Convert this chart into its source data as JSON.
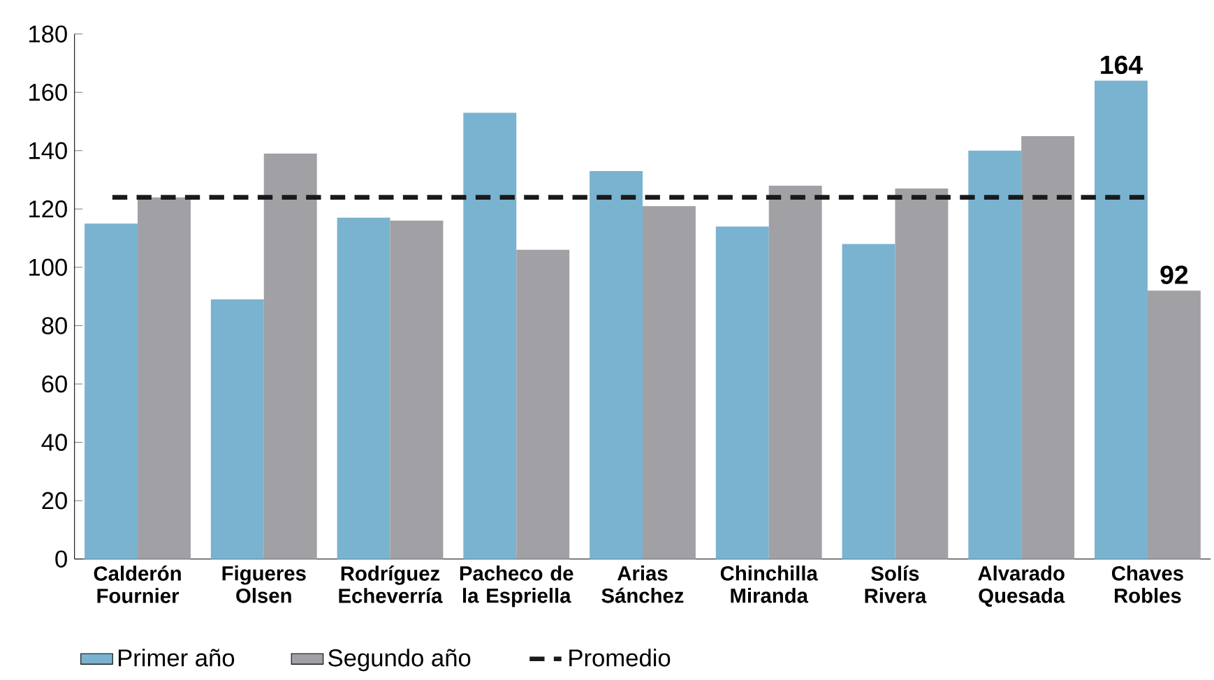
{
  "chart_data": {
    "type": "bar",
    "categories": [
      "Calderón Fournier",
      "Figueres Olsen",
      "Rodríguez Echeverría",
      "Pacheco de la Espriella",
      "Arias Sánchez",
      "Chinchilla Miranda",
      "Solís Rivera",
      "Alvarado Quesada",
      "Chaves Robles"
    ],
    "series": [
      {
        "name": "Primer año",
        "color": "#7ab3cf",
        "values": [
          115,
          89,
          117,
          153,
          133,
          114,
          108,
          140,
          164
        ],
        "value_labels": [
          null,
          null,
          null,
          null,
          null,
          null,
          null,
          null,
          "164"
        ]
      },
      {
        "name": "Segundo año",
        "color": "#a0a0a5",
        "values": [
          124,
          139,
          116,
          106,
          121,
          128,
          127,
          145,
          92
        ],
        "value_labels": [
          null,
          null,
          null,
          null,
          null,
          null,
          null,
          null,
          "92"
        ]
      }
    ],
    "ref_lines": [
      {
        "axis": "y",
        "value": 124,
        "label": "Promedio",
        "color": "#1a1a1a",
        "line_style": "dashed"
      }
    ],
    "ylim": [
      0,
      180
    ],
    "yticks": [
      0,
      20,
      40,
      60,
      80,
      100,
      120,
      140,
      160,
      180
    ],
    "legend": "bottom left",
    "grid": false
  }
}
